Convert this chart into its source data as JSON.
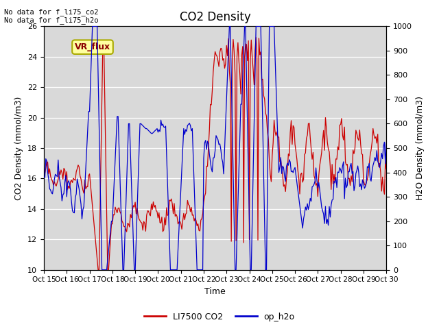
{
  "title": "CO2 Density",
  "xlabel": "Time",
  "ylabel_left": "CO2 Density (mmol/m3)",
  "ylabel_right": "H2O Density (mmol/m3)",
  "ylim_left": [
    10,
    26
  ],
  "ylim_right": [
    0,
    1000
  ],
  "no_data_text_1": "No data for f_li75_co2",
  "no_data_text_2": "No data for f_li75_h2o",
  "vr_flux_label": "VR_flux",
  "legend_entries": [
    "LI7500 CO2",
    "op_h2o"
  ],
  "line_colors": [
    "#cc0000",
    "#0000cc"
  ],
  "bg_color": "#d9d9d9",
  "fig_bg": "#ffffff",
  "x_tick_labels": [
    "Oct 15",
    "Oct 16",
    "Oct 17",
    "Oct 18",
    "Oct 19",
    "Oct 20",
    "Oct 21",
    "Oct 22",
    "Oct 23",
    "Oct 24",
    "Oct 25",
    "Oct 26",
    "Oct 27",
    "Oct 28",
    "Oct 29",
    "Oct 30"
  ],
  "x_tick_pos": [
    0,
    24,
    48,
    72,
    96,
    120,
    144,
    168,
    192,
    216,
    240,
    264,
    288,
    312,
    336,
    360
  ],
  "yticks_left": [
    10,
    12,
    14,
    16,
    18,
    20,
    22,
    24,
    26
  ],
  "yticks_right": [
    0,
    100,
    200,
    300,
    400,
    500,
    600,
    700,
    800,
    900,
    1000
  ]
}
